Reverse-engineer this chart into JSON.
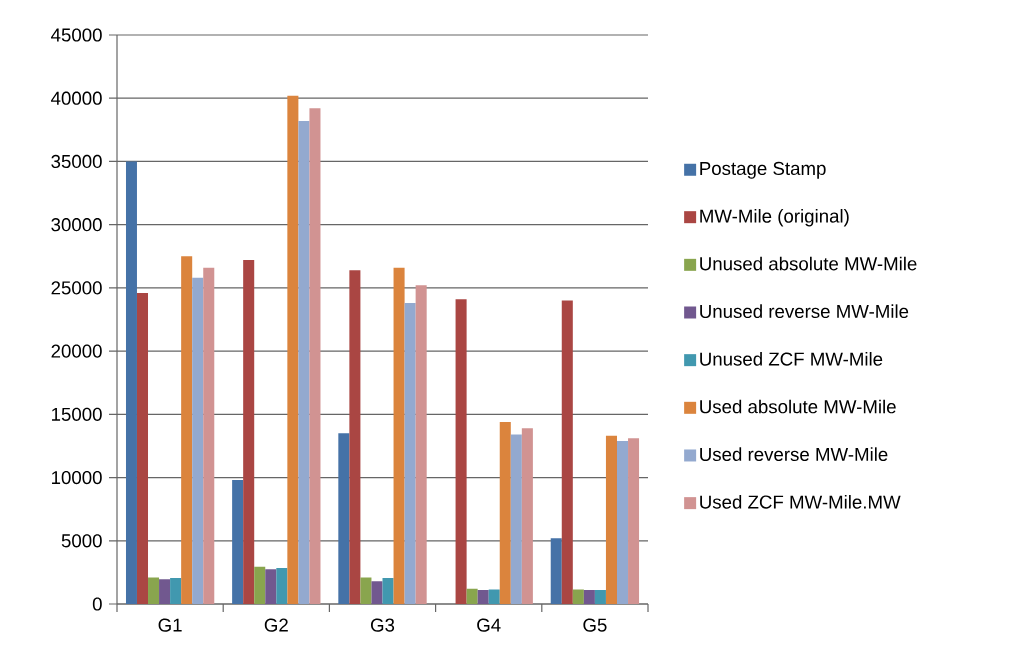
{
  "chart_data": {
    "type": "bar",
    "categories": [
      "G1",
      "G2",
      "G3",
      "G4",
      "G5"
    ],
    "series": [
      {
        "name": "Postage Stamp",
        "color": "#4572a7",
        "values": [
          35000,
          9800,
          13500,
          0,
          5200
        ]
      },
      {
        "name": "MW-Mile (original)",
        "color": "#aa4643",
        "values": [
          24600,
          27200,
          26400,
          24100,
          24000
        ]
      },
      {
        "name": "Unused absolute MW-Mile",
        "color": "#89a54e",
        "values": [
          2100,
          2950,
          2100,
          1200,
          1150
        ]
      },
      {
        "name": "Unused reverse MW-Mile",
        "color": "#71588f",
        "values": [
          1950,
          2750,
          1800,
          1100,
          1100
        ]
      },
      {
        "name": "Unused ZCF MW-Mile",
        "color": "#4198af",
        "values": [
          2050,
          2850,
          2050,
          1150,
          1100
        ]
      },
      {
        "name": "Used absolute MW-Mile",
        "color": "#db843d",
        "values": [
          27500,
          40200,
          26600,
          14400,
          13300
        ]
      },
      {
        "name": "Used reverse MW-Mile",
        "color": "#93a9cf",
        "values": [
          25800,
          38200,
          23800,
          13400,
          12900
        ]
      },
      {
        "name": "Used ZCF MW-Mile.MW",
        "color": "#d19392",
        "values": [
          26600,
          39200,
          25200,
          13900,
          13100
        ]
      }
    ],
    "ylim": [
      0,
      45000
    ],
    "yticks": [
      0,
      5000,
      10000,
      15000,
      20000,
      25000,
      30000,
      35000,
      40000,
      45000
    ],
    "grid": "y",
    "legend": "right"
  }
}
